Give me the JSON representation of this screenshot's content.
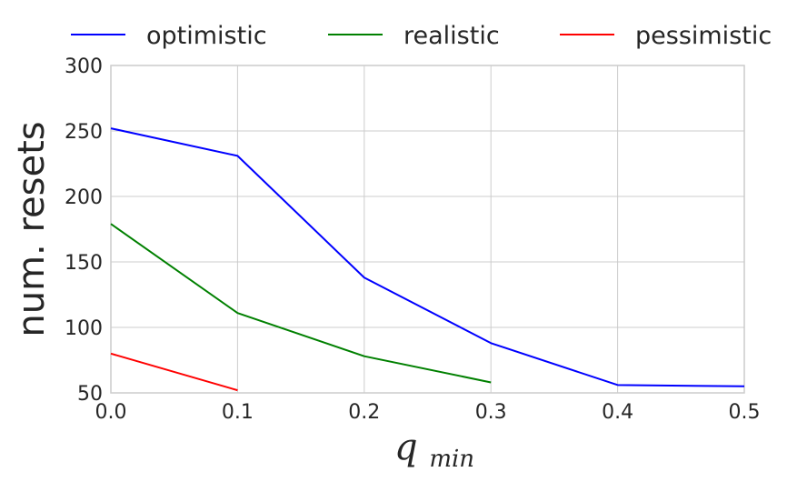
{
  "chart_data": {
    "type": "line",
    "x": [
      0.0,
      0.1,
      0.2,
      0.3,
      0.4,
      0.5
    ],
    "series": [
      {
        "name": "optimistic",
        "color": "#0000ff",
        "values": [
          252,
          231,
          138,
          88,
          56,
          55
        ]
      },
      {
        "name": "realistic",
        "color": "#008000",
        "values": [
          179,
          111,
          78,
          58,
          null,
          null
        ]
      },
      {
        "name": "pessimistic",
        "color": "#ff0000",
        "values": [
          80,
          52,
          null,
          null,
          null,
          null
        ]
      }
    ],
    "xlabel_main": "q",
    "xlabel_sub": "min",
    "ylabel": "num. resets",
    "xlim": [
      0.0,
      0.5
    ],
    "ylim": [
      50,
      300
    ],
    "xticks": [
      "0.0",
      "0.1",
      "0.2",
      "0.3",
      "0.4",
      "0.5"
    ],
    "yticks": [
      "50",
      "100",
      "150",
      "200",
      "250",
      "300"
    ],
    "grid": true,
    "legend_position": "top"
  }
}
